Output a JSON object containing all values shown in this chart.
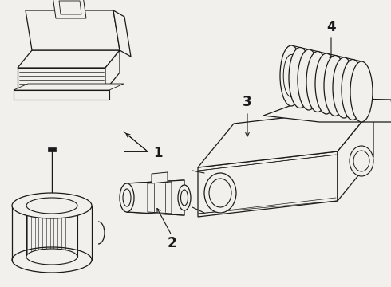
{
  "background_color": "#f2f0ec",
  "line_color": "#1a1a1a",
  "figsize": [
    4.9,
    3.6
  ],
  "dpi": 100,
  "label_fontsize": 12
}
